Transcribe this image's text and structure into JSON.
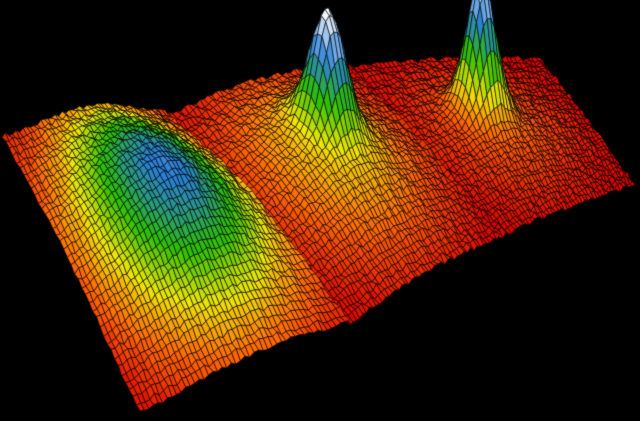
{
  "background": "#000000",
  "colormap": [
    "#d40000",
    "#ff6a00",
    "#f0e800",
    "#2ec000",
    "#2a7fd8",
    "#ffffff"
  ],
  "mesh_line_color": "#000000",
  "panels": [
    {
      "distribution": "broad-hump"
    },
    {
      "distribution": "sharp-peak-on-pedestal"
    },
    {
      "distribution": "sharp-peak"
    }
  ]
}
